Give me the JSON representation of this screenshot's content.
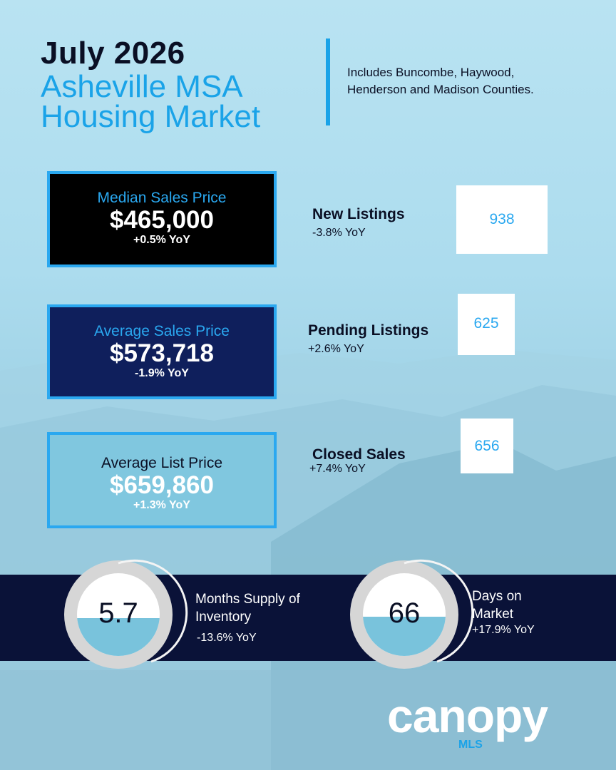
{
  "header": {
    "title": "July 2026",
    "subtitle_lines": [
      "Asheville MSA",
      "Housing Market"
    ],
    "note": "Includes Buncombe, Haywood, Henderson and Madison Counties."
  },
  "price_cards": [
    {
      "label": "Median Sales Price",
      "value": "$465,000",
      "change": "+0.5% YoY"
    },
    {
      "label": "Average Sales Price",
      "value": "$573,718",
      "change": "-1.9% YoY"
    },
    {
      "label": "Average List Price",
      "value": "$659,860",
      "change": "+1.3% YoY"
    }
  ],
  "stats": [
    {
      "label": "New Listings",
      "value": "938",
      "change": "-3.8% YoY"
    },
    {
      "label": "Pending Listings",
      "value": "625",
      "change": "+2.6% YoY"
    },
    {
      "label": "Closed Sales",
      "value": "656",
      "change": "+7.4% YoY"
    }
  ],
  "gauges": [
    {
      "value": "5.7",
      "label": "Months Supply of Inventory",
      "change": "-13.6% YoY"
    },
    {
      "value": "66",
      "label": "Days on Market",
      "change": "+17.9% YoY"
    }
  ],
  "footer": {
    "logo": "canopy",
    "logo_sub": "MLS"
  }
}
